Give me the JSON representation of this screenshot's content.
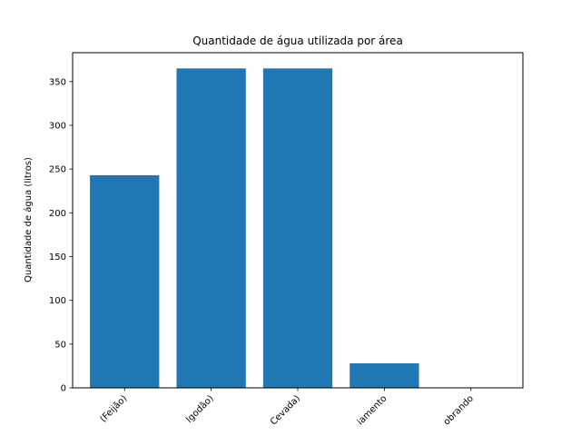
{
  "chart_data": {
    "type": "bar",
    "title": "Quantidade de água utilizada por área",
    "xlabel": "",
    "ylabel": "Quantidade de água (litros)",
    "categories": [
      "(Feijão)",
      "lgodão)",
      "Cevada)",
      "iamento",
      "obrando"
    ],
    "values": [
      243,
      365,
      365,
      28,
      0
    ],
    "ylim": [
      0,
      383
    ],
    "yticks": [
      0,
      50,
      100,
      150,
      200,
      250,
      300,
      350
    ],
    "bar_color": "#1f77b4",
    "grid": false,
    "xtick_rotation": "45 degrees"
  }
}
